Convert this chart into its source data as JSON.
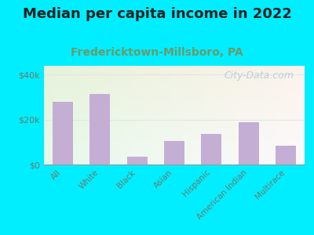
{
  "title": "Median per capita income in 2022",
  "subtitle": "Fredericktown-Millsboro, PA",
  "categories": [
    "All",
    "White",
    "Black",
    "Asian",
    "Hispanic",
    "American Indian",
    "Multirace"
  ],
  "values": [
    28000,
    31500,
    3500,
    10500,
    13500,
    19000,
    8500
  ],
  "bar_color": "#c4aed4",
  "background_outer": "#00eeff",
  "title_fontsize": 13,
  "subtitle_fontsize": 10,
  "subtitle_color": "#6a9a6a",
  "title_color": "#222222",
  "tick_label_color": "#6a7a6a",
  "ytick_labels": [
    "$0",
    "$20k",
    "$40k"
  ],
  "ytick_values": [
    0,
    20000,
    40000
  ],
  "ylim": [
    0,
    44000
  ],
  "watermark": "City-Data.com",
  "watermark_color": "#b8c8d8",
  "watermark_fontsize": 9,
  "grid_color": "#e0e8e0",
  "plot_bg_color": "#f0f8e8"
}
